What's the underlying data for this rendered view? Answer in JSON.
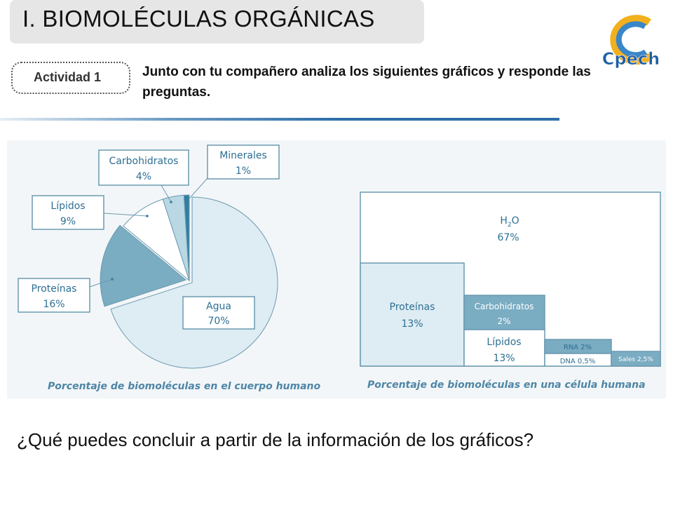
{
  "slide": {
    "title": "I. BIOMOLÉCULAS ORGÁNICAS",
    "activity_label": "Actividad 1",
    "instruction": "Junto con tu compañero analiza los siguientes gráficos y responde las preguntas.",
    "question": "¿Qué puedes concluir a partir de la información de los gráficos?",
    "logo_text": "Cpech"
  },
  "colors": {
    "accent": "#2e6faa",
    "frame": "#6b9ab0",
    "caption": "#4e86a6"
  },
  "chart_data": [
    {
      "type": "pie",
      "title": "Porcentaje de biomoléculas en el cuerpo humano",
      "slices": [
        {
          "label": "Agua",
          "value": 70,
          "display": "70%",
          "color": "#deecf3"
        },
        {
          "label": "Proteínas",
          "value": 16,
          "display": "16%",
          "color": "#7aacc2"
        },
        {
          "label": "Lípidos",
          "value": 9,
          "display": "9%",
          "color": "#ffffff"
        },
        {
          "label": "Carbohidratos",
          "value": 4,
          "display": "4%",
          "color": "#b9d8e4"
        },
        {
          "label": "Minerales",
          "value": 1,
          "display": "1%",
          "color": "#2f7fa3"
        }
      ]
    },
    {
      "type": "table",
      "title": "Porcentaje de biomoléculas en una célula humana",
      "cells": [
        {
          "label": "H2O",
          "value": 67,
          "display": "67%"
        },
        {
          "label": "Proteínas",
          "value": 13,
          "display": "13%"
        },
        {
          "label": "Carbohidratos",
          "value": 2,
          "display": "2%"
        },
        {
          "label": "Lípidos",
          "value": 13,
          "display": "13%"
        },
        {
          "label": "RNA",
          "value": 2,
          "display": "RNA 2%"
        },
        {
          "label": "DNA",
          "value": 0.5,
          "display": "DNA 0,5%"
        },
        {
          "label": "Sales",
          "value": 2.5,
          "display": "Sales 2,5%"
        }
      ]
    }
  ]
}
